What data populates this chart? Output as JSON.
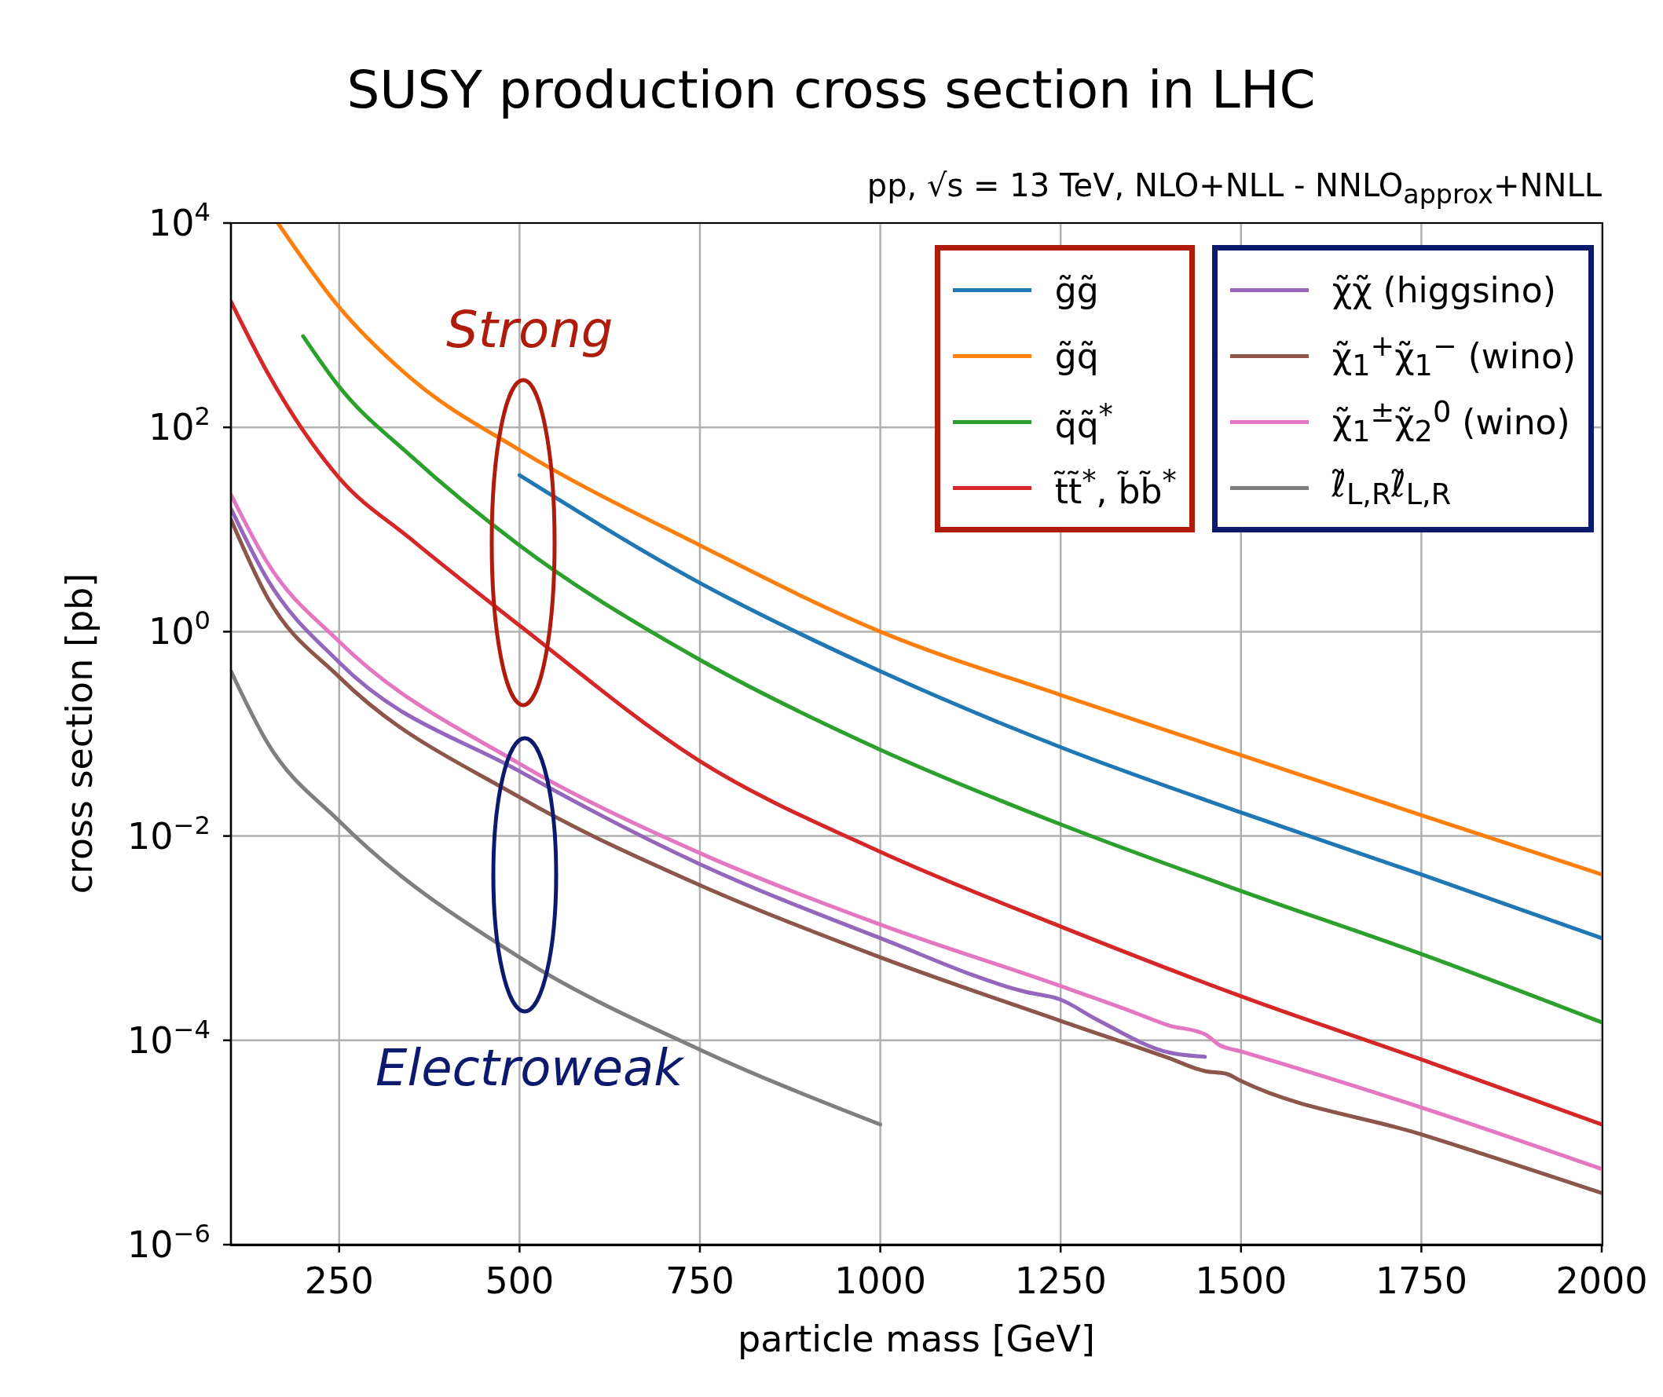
{
  "chart_data": {
    "type": "line",
    "title": "SUSY production cross section in LHC",
    "subtitle": "pp, √s = 13 TeV, NLO+NLL - NNLO$_{approx}$+NNLL",
    "xlabel": "particle mass [GeV]",
    "ylabel": "cross section [pb]",
    "log": "y",
    "grid": true,
    "legend": "top right",
    "marker": "none",
    "line_style": "solid",
    "xlim": [
      100,
      2000
    ],
    "xticks": [
      250,
      500,
      750,
      1000,
      1250,
      1500,
      1750,
      2000
    ],
    "ylim": [
      1e-06,
      10000
    ],
    "yticks": [
      {
        "value": 1e-06,
        "label": "10$^{−6}$"
      },
      {
        "value": 0.0001,
        "label": "10$^{−4}$"
      },
      {
        "value": 0.01,
        "label": "10$^{−2}$"
      },
      {
        "value": 1,
        "label": "10$^{0}$"
      },
      {
        "value": 100,
        "label": "10$^{2}$"
      },
      {
        "value": 10000,
        "label": "10$^{4}$"
      }
    ],
    "annotations": [
      "Strong",
      "Electroweak"
    ],
    "series": [
      {
        "name": "g̃g̃",
        "color": "#1f77b4",
        "x": [
          500,
          750,
          1000,
          1250,
          1500,
          1750,
          2000
        ],
        "values": [
          34,
          3.0,
          0.41,
          0.074,
          0.017,
          0.0042,
          0.001
        ]
      },
      {
        "name": "g̃q̃",
        "color": "#ff7f0e",
        "x": [
          165,
          250,
          350,
          500,
          750,
          1000,
          1250,
          1500,
          1750,
          2000
        ],
        "values": [
          10000,
          1500,
          300,
          60,
          7,
          1.0,
          0.24,
          0.062,
          0.016,
          0.0042
        ]
      },
      {
        "name": "q̃q̃$^{*}$",
        "color": "#2ca02c",
        "x": [
          200,
          250,
          350,
          500,
          750,
          1000,
          1250,
          1500,
          1750,
          2000
        ],
        "values": [
          780,
          250,
          52,
          7,
          0.53,
          0.07,
          0.013,
          0.0029,
          0.0007,
          0.00015
        ]
      },
      {
        "name": "t̃t̃$^{*}$, b̃b̃$^{*}$",
        "color": "#d62728",
        "x": [
          100,
          150,
          250,
          350,
          500,
          750,
          1000,
          1250,
          1500,
          1750,
          2000
        ],
        "values": [
          1700,
          350,
          32,
          8,
          1.15,
          0.054,
          0.007,
          0.0013,
          0.00027,
          6.5e-05,
          1.5e-05
        ]
      },
      {
        "name": "χ̃χ̃ (higgsino)",
        "color": "#9467bd",
        "x": [
          100,
          150,
          250,
          500,
          750,
          1000,
          1200,
          1250,
          1300,
          1400,
          1450
        ],
        "values": [
          16,
          3.3,
          0.5,
          0.043,
          0.0053,
          0.001,
          0.0003,
          0.00025,
          0.00016,
          7.6e-05,
          6.9e-05
        ]
      },
      {
        "name": "χ̃$_{1}$$^{+}$χ̃$_{1}$$^{−}$ (wino)",
        "color": "#8c564b",
        "x": [
          100,
          150,
          250,
          500,
          750,
          1000,
          1250,
          1400,
          1450,
          1480,
          1500,
          1750,
          2000
        ],
        "values": [
          12.5,
          2.2,
          0.36,
          0.024,
          0.0033,
          0.00065,
          0.000155,
          6.7e-05,
          5e-05,
          4.7e-05,
          4e-05,
          1.2e-05,
          3.2e-06
        ]
      },
      {
        "name": "χ̃$_{1}$$^{±}$χ̃$_{2}$$^{0}$ (wino)",
        "color": "#e377c2",
        "x": [
          100,
          150,
          250,
          500,
          750,
          1000,
          1250,
          1350,
          1400,
          1450,
          1470,
          1500,
          1750,
          2000
        ],
        "values": [
          22,
          4.8,
          0.8,
          0.051,
          0.0068,
          0.00136,
          0.00034,
          0.00019,
          0.00014,
          0.000115,
          9e-05,
          7.8e-05,
          2.2e-05,
          5.5e-06
        ]
      },
      {
        "name": "ℓ̃$_{L,R}$ℓ̃$_{L,R}$",
        "color": "#7f7f7f",
        "x": [
          100,
          150,
          250,
          500,
          750,
          1000
        ],
        "values": [
          0.41,
          0.083,
          0.014,
          0.00065,
          8.1e-05,
          1.5e-05
        ]
      }
    ]
  }
}
